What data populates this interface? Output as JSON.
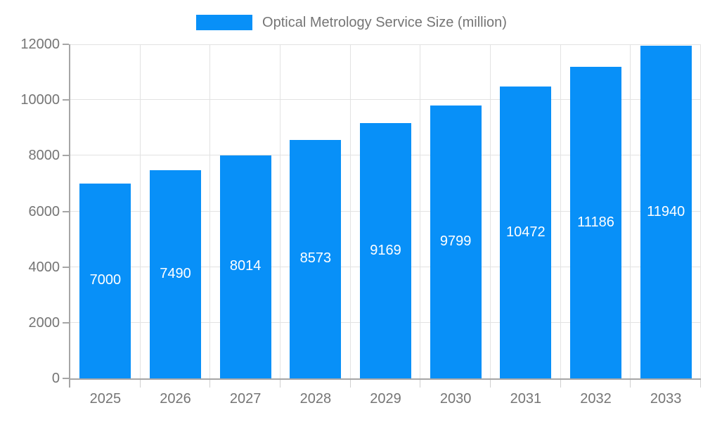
{
  "chart_data": {
    "type": "bar",
    "title": "Optical Metrology Service Size (million)",
    "categories": [
      "2025",
      "2026",
      "2027",
      "2028",
      "2029",
      "2030",
      "2031",
      "2032",
      "2033"
    ],
    "values": [
      7000,
      7490,
      8014,
      8573,
      9169,
      9799,
      10472,
      11186,
      11940
    ],
    "xlabel": "",
    "ylabel": "",
    "ylim": [
      0,
      12000
    ],
    "yticks": [
      0,
      2000,
      4000,
      6000,
      8000,
      10000,
      12000
    ],
    "legend_position": "top-center",
    "grid": "horizontal-and-vertical",
    "bar_label_position": "inside-middle",
    "colors": {
      "bar": "#0890f8",
      "bar_label": "#ffffff",
      "axis_line": "#a6a6a6",
      "grid_line": "#e2e2e2",
      "tick_text": "#757575",
      "legend_text": "#757575",
      "background": "#ffffff"
    }
  }
}
